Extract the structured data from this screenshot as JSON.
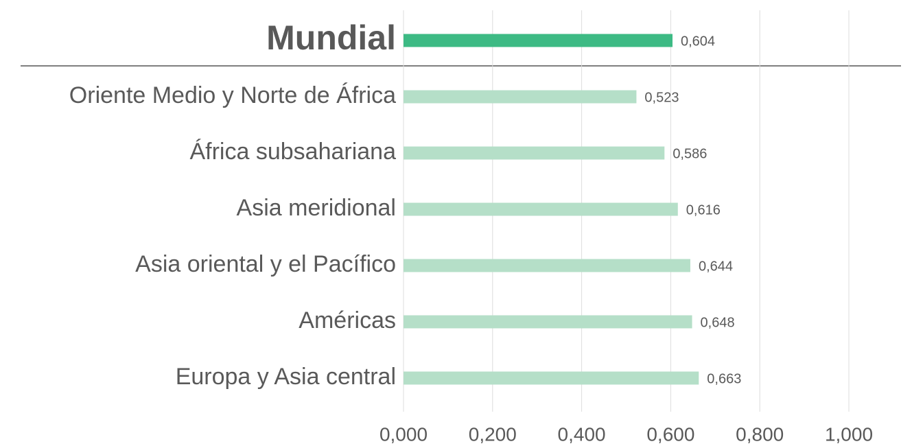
{
  "chart_data": {
    "type": "bar",
    "orientation": "horizontal",
    "categories": [
      "Mundial",
      "Oriente Medio y Norte de África",
      "África subsahariana",
      "Asia meridional",
      "Asia oriental y el Pacífico",
      "Américas",
      "Europa y Asia central"
    ],
    "values": [
      0.604,
      0.523,
      0.586,
      0.616,
      0.644,
      0.648,
      0.663
    ],
    "value_labels": [
      "0,604",
      "0,523",
      "0,586",
      "0,616",
      "0,644",
      "0,648",
      "0,663"
    ],
    "colors": [
      "#3dba84",
      "#b5dfc8",
      "#b5dfc8",
      "#b5dfc8",
      "#b5dfc8",
      "#b5dfc8",
      "#b5dfc8"
    ],
    "xlim": [
      0,
      1
    ],
    "xticks": [
      {
        "value": 0,
        "label": "0,000"
      },
      {
        "value": 0.2,
        "label": "0,200"
      },
      {
        "value": 0.4,
        "label": "0,400"
      },
      {
        "value": 0.6,
        "label": "0,600"
      },
      {
        "value": 0.8,
        "label": "0,800"
      },
      {
        "value": 1,
        "label": "1,000"
      }
    ],
    "grid": true
  }
}
